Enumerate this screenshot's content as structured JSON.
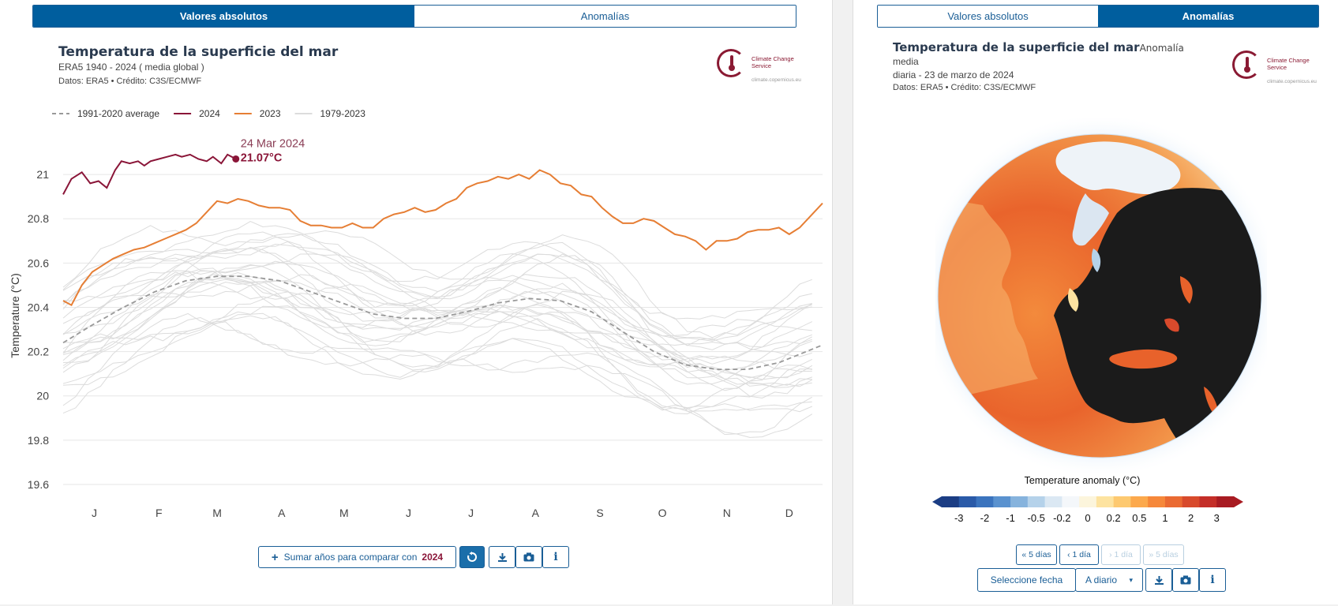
{
  "left": {
    "tabs": [
      "Valores absolutos",
      "Anomalías"
    ],
    "active_tab": 0,
    "title": "Temperatura de la superficie del mar",
    "subtitle": "ERA5 1940 - 2024 ( media global )",
    "credit": "Datos: ERA5 • Crédito: C3S/ECMWF",
    "logo": {
      "name": "Climate Change Service",
      "url": "climate.copernicus.eu"
    },
    "compare_label": "Sumar años para comparar con",
    "compare_year": "2024",
    "icons": [
      "reset-icon",
      "download-icon",
      "camera-icon",
      "info-icon"
    ]
  },
  "right": {
    "tabs": [
      "Valores absolutos",
      "Anomalías"
    ],
    "active_tab": 1,
    "title": "Temperatura de la superficie del mar",
    "title_suffix": "Anomalía",
    "subtitle1": "media",
    "subtitle2": "diaria - 23 de marzo de 2024",
    "credit": "Datos: ERA5 • Crédito: C3S/ECMWF",
    "logo": {
      "name": "Climate Change Service",
      "url": "climate.copernicus.eu"
    },
    "colorbar_title": "Temperature anomaly (°C)",
    "colorbar_ticks": [
      "-3",
      "-2",
      "-1",
      "-0.5",
      "-0.2",
      "0",
      "0.2",
      "0.5",
      "1",
      "2",
      "3"
    ],
    "colorbar_colors": [
      "#1b3d84",
      "#2a5aa8",
      "#3b74be",
      "#5a92cf",
      "#86b3dd",
      "#b5d2ea",
      "#dbe8f3",
      "#f4f7fa",
      "#fcf5dc",
      "#fde3a0",
      "#fdc970",
      "#fca94c",
      "#f6883a",
      "#ea6a32",
      "#d84a2c",
      "#c42e28",
      "#a81b22"
    ],
    "nav_buttons": [
      "« 5 días",
      "‹ 1 día",
      "› 1 día",
      "» 5 días"
    ],
    "select_date_label": "Seleccione fecha",
    "frequency_label": "A diario",
    "frequency_caret": "▾"
  },
  "colors": {
    "brand": "#005e9e",
    "y2024": "#8a1538",
    "y2023": "#e67e34",
    "avg": "#999999",
    "past": "#dcdcdc"
  },
  "chart_data": {
    "type": "line",
    "title": "Temperatura de la superficie del mar",
    "ylabel": "Temperature (°C)",
    "ylim": [
      19.55,
      21.2
    ],
    "yticks": [
      19.6,
      19.8,
      20,
      20.2,
      20.4,
      20.6,
      20.8,
      21
    ],
    "x_domain": [
      1,
      366
    ],
    "xticks": [
      {
        "day": 16,
        "label": "J"
      },
      {
        "day": 47,
        "label": "F"
      },
      {
        "day": 75,
        "label": "M"
      },
      {
        "day": 106,
        "label": "A"
      },
      {
        "day": 136,
        "label": "M"
      },
      {
        "day": 167,
        "label": "J"
      },
      {
        "day": 197,
        "label": "J"
      },
      {
        "day": 228,
        "label": "A"
      },
      {
        "day": 259,
        "label": "S"
      },
      {
        "day": 289,
        "label": "O"
      },
      {
        "day": 320,
        "label": "N"
      },
      {
        "day": 350,
        "label": "D"
      }
    ],
    "legend": [
      {
        "label": "1991-2020 average",
        "key": "avg"
      },
      {
        "label": "2024",
        "key": "y2024"
      },
      {
        "label": "2023",
        "key": "y2023"
      },
      {
        "label": "1979-2023",
        "key": "past"
      }
    ],
    "series": [
      {
        "name": "2024",
        "key": "y2024",
        "x": [
          1,
          5,
          10,
          14,
          18,
          22,
          26,
          29,
          33,
          37,
          40,
          43,
          47,
          51,
          55,
          58,
          62,
          66,
          70,
          73,
          77,
          80,
          84
        ],
        "y": [
          20.91,
          20.98,
          21.01,
          20.96,
          20.97,
          20.94,
          21.02,
          21.06,
          21.05,
          21.06,
          21.04,
          21.06,
          21.07,
          21.08,
          21.09,
          21.08,
          21.09,
          21.07,
          21.06,
          21.08,
          21.05,
          21.09,
          21.07
        ]
      },
      {
        "name": "2023",
        "key": "y2023",
        "x": [
          1,
          5,
          10,
          15,
          20,
          25,
          30,
          35,
          40,
          45,
          50,
          55,
          60,
          65,
          70,
          75,
          80,
          85,
          90,
          95,
          100,
          105,
          110,
          115,
          120,
          125,
          130,
          135,
          140,
          145,
          150,
          155,
          160,
          165,
          170,
          175,
          180,
          185,
          190,
          195,
          200,
          205,
          210,
          215,
          220,
          225,
          230,
          235,
          240,
          245,
          250,
          255,
          260,
          265,
          270,
          275,
          280,
          285,
          290,
          295,
          300,
          305,
          310,
          315,
          320,
          325,
          330,
          335,
          340,
          345,
          350,
          355,
          360,
          366
        ],
        "y": [
          20.43,
          20.41,
          20.5,
          20.56,
          20.59,
          20.62,
          20.64,
          20.66,
          20.67,
          20.69,
          20.71,
          20.73,
          20.75,
          20.78,
          20.83,
          20.88,
          20.87,
          20.89,
          20.88,
          20.86,
          20.85,
          20.85,
          20.84,
          20.79,
          20.77,
          20.77,
          20.76,
          20.76,
          20.78,
          20.76,
          20.76,
          20.8,
          20.82,
          20.83,
          20.85,
          20.83,
          20.84,
          20.87,
          20.89,
          20.94,
          20.96,
          20.97,
          20.99,
          20.98,
          21.0,
          20.98,
          21.02,
          21.0,
          20.96,
          20.95,
          20.91,
          20.9,
          20.85,
          20.81,
          20.78,
          20.78,
          20.8,
          20.79,
          20.76,
          20.73,
          20.72,
          20.7,
          20.66,
          20.7,
          20.7,
          20.71,
          20.74,
          20.75,
          20.75,
          20.76,
          20.73,
          20.76,
          20.81,
          20.87
        ]
      },
      {
        "name": "1991-2020 average",
        "key": "avg",
        "x": [
          1,
          15,
          30,
          45,
          60,
          75,
          90,
          105,
          120,
          135,
          150,
          165,
          180,
          195,
          210,
          225,
          240,
          255,
          270,
          285,
          300,
          315,
          330,
          345,
          366
        ],
        "y": [
          20.24,
          20.32,
          20.4,
          20.47,
          20.52,
          20.54,
          20.54,
          20.52,
          20.47,
          20.42,
          20.37,
          20.35,
          20.35,
          20.38,
          20.42,
          20.44,
          20.43,
          20.38,
          20.29,
          20.2,
          20.14,
          20.12,
          20.12,
          20.15,
          20.23
        ]
      }
    ],
    "callout": {
      "date": "24 Mar 2024",
      "value": "21.07°C",
      "x": 84,
      "y": 21.07
    },
    "past_band": {
      "name": "1979-2023",
      "key": "past",
      "count": 26
    }
  }
}
